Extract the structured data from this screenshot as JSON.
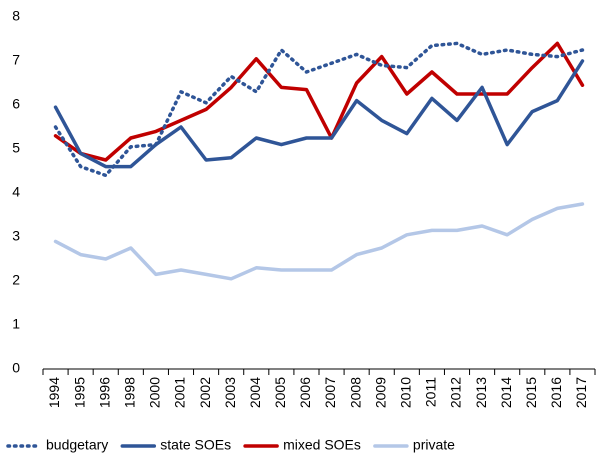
{
  "chart_data": {
    "type": "line",
    "categories": [
      "1994",
      "1995",
      "1996",
      "1998",
      "2000",
      "2001",
      "2002",
      "2003",
      "2004",
      "2005",
      "2006",
      "2007",
      "2008",
      "2009",
      "2010",
      "2011",
      "2012",
      "2013",
      "2014",
      "2015",
      "2016",
      "2017"
    ],
    "series": [
      {
        "name": "budgetary",
        "color": "#2f5597",
        "line_style": "dotted",
        "values": [
          5.5,
          4.6,
          4.4,
          5.05,
          5.1,
          6.3,
          6.05,
          6.65,
          6.3,
          7.25,
          6.75,
          6.95,
          7.15,
          6.9,
          6.85,
          7.35,
          7.4,
          7.15,
          7.25,
          7.15,
          7.1,
          7.25
        ]
      },
      {
        "name": "state SOEs",
        "color": "#2f5597",
        "line_style": "solid",
        "values": [
          5.95,
          4.9,
          4.6,
          4.6,
          5.1,
          5.5,
          4.75,
          4.8,
          5.25,
          5.1,
          5.25,
          5.25,
          6.1,
          5.65,
          5.35,
          6.15,
          5.65,
          6.4,
          5.1,
          5.85,
          6.1,
          7.0
        ]
      },
      {
        "name": "mixed SOEs",
        "color": "#c00000",
        "line_style": "solid",
        "values": [
          5.3,
          4.9,
          4.75,
          5.25,
          5.4,
          5.65,
          5.9,
          6.4,
          7.05,
          6.4,
          6.35,
          5.25,
          6.5,
          7.1,
          6.25,
          6.75,
          6.25,
          6.25,
          6.25,
          6.85,
          7.4,
          6.45
        ]
      },
      {
        "name": "private",
        "color": "#b4c7e7",
        "line_style": "solid",
        "values": [
          2.9,
          2.6,
          2.5,
          2.75,
          2.15,
          2.25,
          2.15,
          2.05,
          2.3,
          2.25,
          2.25,
          2.25,
          2.6,
          2.75,
          3.05,
          3.15,
          3.15,
          3.25,
          3.05,
          3.4,
          3.65,
          3.75
        ]
      }
    ],
    "ylim": [
      0,
      8
    ],
    "yticks": [
      0,
      1,
      2,
      3,
      4,
      5,
      6,
      7,
      8
    ],
    "grid": false,
    "legend": "bottom"
  }
}
